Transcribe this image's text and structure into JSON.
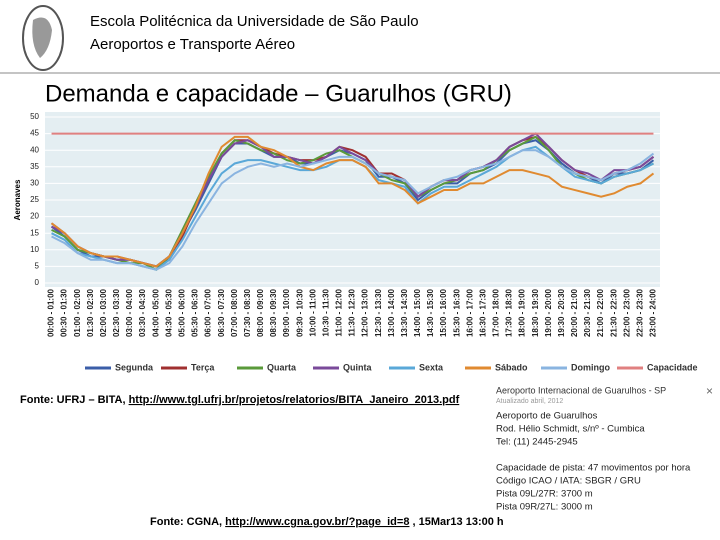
{
  "header": {
    "institution": "Escola Politécnica da Universidade de São Paulo",
    "course": "Aeroportos e Transporte Aéreo"
  },
  "slide_title": "Demanda e capacidade – Guarulhos (GRU)",
  "chart_data": {
    "type": "line",
    "ylabel": "Aeronaves",
    "ylim": [
      0,
      50
    ],
    "yticks": [
      0,
      5,
      10,
      15,
      20,
      25,
      30,
      35,
      40,
      45,
      50
    ],
    "grid": true,
    "legend": "bottom",
    "categories": [
      "00:00 - 01:00",
      "00:30 - 01:30",
      "01:00 - 02:00",
      "01:30 - 02:30",
      "02:00 - 03:00",
      "02:30 - 03:30",
      "03:00 - 04:00",
      "03:30 - 04:30",
      "04:00 - 05:00",
      "04:30 - 05:30",
      "05:00 - 06:00",
      "05:30 - 06:30",
      "06:00 - 07:00",
      "06:30 - 07:30",
      "07:00 - 08:00",
      "07:30 - 08:30",
      "08:00 - 09:00",
      "08:30 - 09:30",
      "09:00 - 10:00",
      "09:30 - 10:30",
      "10:00 - 11:00",
      "10:30 - 11:30",
      "11:00 - 12:00",
      "11:30 - 12:30",
      "12:00 - 13:00",
      "12:30 - 13:30",
      "13:00 - 14:00",
      "13:30 - 14:30",
      "14:00 - 15:00",
      "14:30 - 15:30",
      "15:00 - 16:00",
      "15:30 - 16:30",
      "16:00 - 17:00",
      "16:30 - 17:30",
      "17:00 - 18:00",
      "17:30 - 18:30",
      "18:00 - 19:00",
      "18:30 - 19:30",
      "19:00 - 20:00",
      "19:30 - 20:30",
      "20:00 - 21:00",
      "20:30 - 21:30",
      "21:00 - 22:00",
      "21:30 - 22:30",
      "22:00 - 23:00",
      "22:30 - 23:30",
      "23:00 - 24:00"
    ],
    "series": [
      {
        "name": "Segunda",
        "color": "#3b5ea8",
        "values": [
          17,
          14,
          10,
          8,
          8,
          7,
          7,
          6,
          5,
          8,
          15,
          22,
          30,
          38,
          42,
          42,
          40,
          38,
          38,
          36,
          36,
          38,
          40,
          39,
          37,
          32,
          32,
          30,
          25,
          28,
          30,
          30,
          33,
          34,
          36,
          40,
          42,
          43,
          40,
          36,
          33,
          32,
          30,
          33,
          33,
          34,
          37
        ]
      },
      {
        "name": "Terça",
        "color": "#a03030",
        "values": [
          18,
          15,
          11,
          9,
          8,
          8,
          7,
          6,
          5,
          7,
          14,
          23,
          31,
          39,
          43,
          43,
          41,
          39,
          38,
          37,
          37,
          38,
          41,
          40,
          38,
          33,
          33,
          31,
          26,
          29,
          31,
          31,
          34,
          35,
          37,
          41,
          43,
          44,
          41,
          37,
          34,
          32,
          31,
          33,
          34,
          35,
          38
        ]
      },
      {
        "name": "Quarta",
        "color": "#5a9a3a",
        "values": [
          16,
          14,
          10,
          9,
          8,
          7,
          6,
          6,
          4,
          8,
          16,
          24,
          32,
          39,
          43,
          42,
          40,
          39,
          37,
          36,
          37,
          39,
          40,
          38,
          36,
          33,
          31,
          30,
          26,
          28,
          30,
          31,
          33,
          34,
          37,
          40,
          42,
          44,
          40,
          35,
          33,
          31,
          30,
          32,
          33,
          34,
          36
        ]
      },
      {
        "name": "Quinta",
        "color": "#7a4a9a",
        "values": [
          17,
          15,
          11,
          9,
          8,
          7,
          7,
          6,
          5,
          8,
          15,
          23,
          31,
          38,
          42,
          43,
          41,
          38,
          38,
          37,
          36,
          38,
          41,
          39,
          37,
          33,
          32,
          31,
          26,
          29,
          31,
          31,
          34,
          35,
          37,
          41,
          43,
          45,
          41,
          37,
          34,
          33,
          31,
          34,
          34,
          35,
          38
        ]
      },
      {
        "name": "Sexta",
        "color": "#5aa8d8",
        "values": [
          15,
          13,
          9,
          8,
          7,
          6,
          6,
          5,
          4,
          7,
          13,
          20,
          27,
          33,
          36,
          37,
          37,
          36,
          35,
          34,
          34,
          35,
          37,
          37,
          35,
          31,
          30,
          29,
          24,
          27,
          29,
          29,
          31,
          33,
          35,
          38,
          40,
          41,
          38,
          35,
          32,
          31,
          30,
          32,
          33,
          34,
          36
        ]
      },
      {
        "name": "Sábado",
        "color": "#e08a30",
        "values": [
          18,
          15,
          11,
          9,
          8,
          8,
          7,
          6,
          5,
          8,
          15,
          23,
          33,
          41,
          44,
          44,
          41,
          40,
          38,
          35,
          34,
          36,
          37,
          37,
          35,
          30,
          30,
          28,
          24,
          26,
          28,
          28,
          30,
          30,
          32,
          34,
          34,
          33,
          32,
          29,
          28,
          27,
          26,
          27,
          29,
          30,
          33
        ]
      },
      {
        "name": "Domingo",
        "color": "#8ab4e0",
        "values": [
          14,
          12,
          9,
          7,
          7,
          6,
          6,
          5,
          4,
          6,
          11,
          18,
          24,
          30,
          33,
          35,
          36,
          35,
          36,
          35,
          36,
          37,
          38,
          38,
          36,
          33,
          32,
          31,
          27,
          29,
          31,
          32,
          34,
          35,
          36,
          38,
          40,
          40,
          38,
          35,
          33,
          32,
          31,
          33,
          34,
          36,
          39
        ]
      },
      {
        "name": "Capacidade",
        "color": "#e08080",
        "values": [
          45,
          45,
          45,
          45,
          45,
          45,
          45,
          45,
          45,
          45,
          45,
          45,
          45,
          45,
          45,
          45,
          45,
          45,
          45,
          45,
          45,
          45,
          45,
          45,
          45,
          45,
          45,
          45,
          45,
          45,
          45,
          45,
          45,
          45,
          45,
          45,
          45,
          45,
          45,
          45,
          45,
          45,
          45,
          45,
          45,
          45,
          45
        ]
      }
    ]
  },
  "sources": {
    "ufrj_label": "Fonte: UFRJ – BITA, ",
    "ufrj_url": "http://www.tgl.ufrj.br/projetos/relatorios/BITA_Janeiro_2013.pdf",
    "cgna_label": "Fonte: CGNA, ",
    "cgna_url": "http://www.cgna.gov.br/?page_id=8",
    "cgna_date": " , 15Mar13 13:00 h"
  },
  "airport_card": {
    "title": "Aeroporto Internacional de Guarulhos - SP",
    "updated": "Atualizado abril, 2012",
    "close": "×",
    "lines": [
      "Aeroporto de Guarulhos",
      "Rod. Hélio Schmidt, s/nº - Cumbica",
      "Tel: (11) 2445-2945",
      "",
      "Capacidade de pista: 47 movimentos por hora",
      "Código ICAO / IATA: SBGR / GRU",
      "Pista 09L/27R: 3700 m",
      "Pista 09R/27L: 3000 m"
    ]
  }
}
